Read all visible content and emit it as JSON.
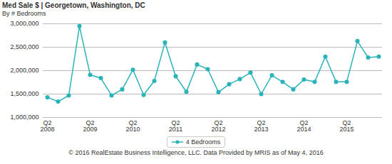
{
  "chart_data": {
    "type": "line",
    "title": "Med Sale $ | Georgetown, Washington, DC",
    "subtitle": "By # Bedrooms",
    "caption": "© 2016 RealEstate Business Intelligence, LLC. Data Provided by MRIS as of May 4, 2016",
    "categories": [
      "Q2\n2008",
      null,
      null,
      null,
      "Q2\n2009",
      null,
      null,
      null,
      "Q2\n2010",
      null,
      null,
      null,
      "Q2\n2011",
      null,
      null,
      null,
      "Q2\n2012",
      null,
      null,
      null,
      "Q2\n2013",
      null,
      null,
      null,
      "Q2\n2014",
      null,
      null,
      null,
      "Q2\n2015",
      null,
      null,
      null
    ],
    "series": [
      {
        "name": "4 Bedrooms",
        "color": "#2ab3b8",
        "marker": "circle",
        "values": [
          1430000,
          1340000,
          1470000,
          2950000,
          1910000,
          1840000,
          1470000,
          1600000,
          2020000,
          1480000,
          1780000,
          2600000,
          1880000,
          1550000,
          2130000,
          2030000,
          1540000,
          1710000,
          1820000,
          1960000,
          1500000,
          1900000,
          1760000,
          1600000,
          1810000,
          1760000,
          2300000,
          1760000,
          1760000,
          2630000,
          2280000,
          2300000
        ]
      }
    ],
    "ylim": [
      1000000,
      3000000
    ],
    "yticks": [
      {
        "value": 1000000,
        "label": "1,000,000"
      },
      {
        "value": 1500000,
        "label": "1,500,000"
      },
      {
        "value": 2000000,
        "label": "2,000,000"
      },
      {
        "value": 2500000,
        "label": "2,500,000"
      },
      {
        "value": 3000000,
        "label": "3,000,000"
      }
    ],
    "grid": true,
    "legend": "bottom"
  }
}
